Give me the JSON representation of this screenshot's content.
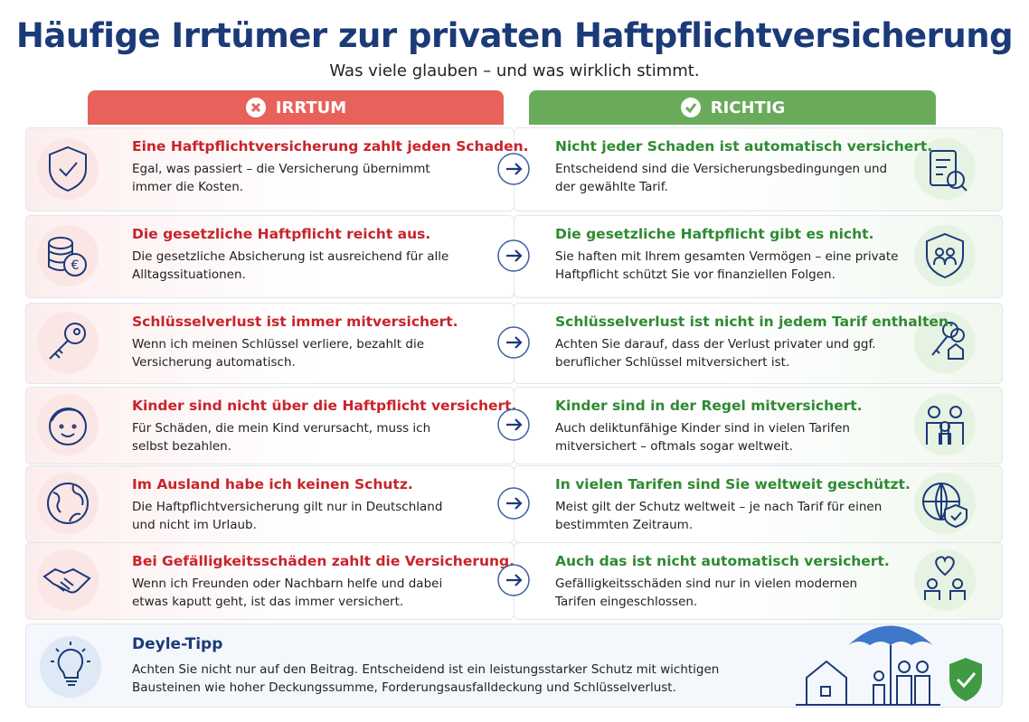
{
  "header": {
    "title": "Häufige Irrtümer zur privaten Haftpflichtversicherung",
    "subtitle": "Was viele glauben – und was wirklich stimmt."
  },
  "columns": {
    "myth": "IRRTUM",
    "fact": "RICHTIG"
  },
  "rows": [
    {
      "myth_title": "Eine Haftpflichtversicherung zahlt jeden Schaden.",
      "myth_text": "Egal, was passiert – die Versicherung übernimmt immer die Kosten.",
      "fact_title": "Nicht jeder Schaden ist automatisch versichert.",
      "fact_text": "Entscheidend sind die Versicherungsbedingungen und der gewählte Tarif."
    },
    {
      "myth_title": "Die gesetzliche Haftpflicht reicht aus.",
      "myth_text": "Die gesetzliche Absicherung ist ausreichend für alle Alltagssituationen.",
      "fact_title": "Die gesetzliche Haftpflicht gibt es nicht.",
      "fact_text": "Sie haften mit Ihrem gesamten Vermögen – eine private Haftpflicht schützt Sie vor finanziellen Folgen."
    },
    {
      "myth_title": "Schlüsselverlust ist immer mitversichert.",
      "myth_text": "Wenn ich meinen Schlüssel verliere, bezahlt die Versicherung automatisch.",
      "fact_title": "Schlüsselverlust ist nicht in jedem Tarif enthalten.",
      "fact_text": "Achten Sie darauf, dass der Verlust privater und ggf. beruflicher Schlüssel mitversichert ist."
    },
    {
      "myth_title": "Kinder sind nicht über die Haftpflicht versichert.",
      "myth_text": "Für Schäden, die mein Kind verursacht, muss ich selbst bezahlen.",
      "fact_title": "Kinder sind in der Regel mitversichert.",
      "fact_text": "Auch deliktunfähige Kinder sind in vielen Tarifen mitversichert – oftmals sogar weltweit."
    },
    {
      "myth_title": "Im Ausland habe ich keinen Schutz.",
      "myth_text": "Die Haftpflichtversicherung gilt nur in Deutschland und nicht im Urlaub.",
      "fact_title": "In vielen Tarifen sind Sie weltweit geschützt.",
      "fact_text": "Meist gilt der Schutz weltweit – je nach Tarif für einen bestimmten Zeitraum."
    },
    {
      "myth_title": "Bei Gefälligkeitsschäden zahlt die Versicherung.",
      "myth_text": "Wenn ich Freunden oder Nachbarn helfe und dabei etwas kaputt geht, ist das immer versichert.",
      "fact_title": "Auch das ist nicht automatisch versichert.",
      "fact_text": "Gefälligkeitsschäden sind nur in vielen modernen Tarifen eingeschlossen."
    }
  ],
  "tip": {
    "title": "Deyle-Tipp",
    "text": "Achten Sie nicht nur auf den Beitrag. Entscheidend ist ein leistungsstarker Schutz mit wichtigen Bausteinen wie hoher Deckungssumme, Forderungsausfalldeckung und Schlüsselverlust."
  }
}
